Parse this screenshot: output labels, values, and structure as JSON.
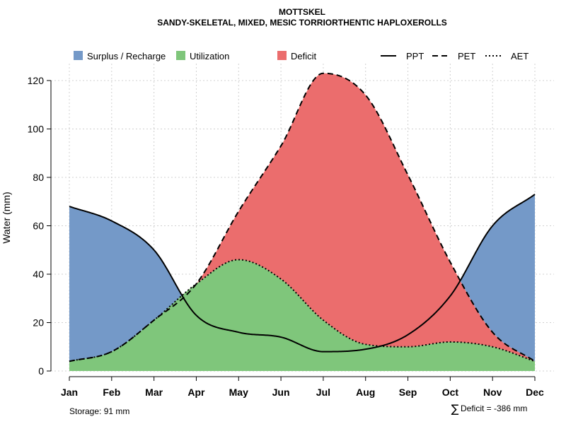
{
  "chart_data": {
    "type": "area",
    "title": "MOTTSKEL",
    "subtitle": "SANDY-SKELETAL, MIXED, MESIC TORRIORTHENTIC HAPLOXEROLLS",
    "xlabel": "",
    "ylabel": "Water (mm)",
    "ylim": [
      0,
      127
    ],
    "yticks": [
      0,
      20,
      40,
      60,
      80,
      100,
      120
    ],
    "grid": true,
    "legend_position": "top",
    "categories": [
      "Jan",
      "Feb",
      "Mar",
      "Apr",
      "May",
      "Jun",
      "Jul",
      "Aug",
      "Sep",
      "Oct",
      "Nov",
      "Dec"
    ],
    "series": [
      {
        "name": "PPT",
        "line_style": "solid",
        "values": [
          68,
          62,
          50,
          23,
          16,
          14,
          8,
          9,
          15,
          31,
          60,
          73
        ]
      },
      {
        "name": "PET",
        "line_style": "dashed",
        "values": [
          4,
          8,
          21,
          36,
          66,
          93,
          123,
          114,
          81,
          45,
          16,
          4
        ]
      },
      {
        "name": "AET",
        "line_style": "dotted",
        "values": [
          4,
          8,
          21,
          36,
          46,
          38,
          21,
          11,
          10,
          12,
          10,
          4
        ]
      }
    ],
    "areas": [
      {
        "name": "Surplus / Recharge",
        "color": "#7499C8",
        "description": "PPT above PET"
      },
      {
        "name": "Utilization",
        "color": "#7FC67B",
        "description": "below AET"
      },
      {
        "name": "Deficit",
        "color": "#EB6D6D",
        "description": "between AET and PET"
      }
    ],
    "legend": {
      "items": [
        "Surplus / Recharge",
        "Utilization",
        "Deficit",
        "PPT",
        "PET",
        "AET"
      ]
    },
    "annotations": {
      "storage": "Storage: 91 mm",
      "deficit_symbol": "∑",
      "deficit": "Deficit = -386 mm"
    }
  }
}
